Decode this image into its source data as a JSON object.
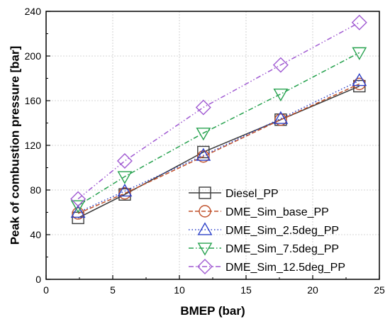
{
  "chart_data": {
    "type": "line",
    "xlabel": "BMEP (bar)",
    "ylabel": "Peak of combustion pressure [bar]",
    "xlim": [
      0,
      25
    ],
    "ylim": [
      0,
      240
    ],
    "xticks": [
      0,
      5,
      10,
      15,
      20,
      25
    ],
    "yticks": [
      0,
      40,
      80,
      120,
      160,
      200,
      240
    ],
    "grid": true,
    "legend_position": "bottom-right",
    "series": [
      {
        "name": "Diesel_PP",
        "marker": "square",
        "color": "#3a3a3a",
        "dash": "solid",
        "x": [
          2.4,
          5.9,
          11.8,
          17.6,
          23.5
        ],
        "y": [
          55,
          76,
          114,
          143,
          173
        ]
      },
      {
        "name": "DME_Sim_base_PP",
        "marker": "circle",
        "color": "#c0502a",
        "dash": "dash",
        "x": [
          2.4,
          5.9,
          11.8,
          17.6,
          23.5
        ],
        "y": [
          59,
          77,
          110,
          143,
          175
        ]
      },
      {
        "name": "DME_Sim_2.5deg_PP",
        "marker": "triangle-up",
        "color": "#2b40c8",
        "dash": "dot",
        "x": [
          2.4,
          5.9,
          11.8,
          17.6,
          23.5
        ],
        "y": [
          60,
          79,
          111,
          144,
          178
        ]
      },
      {
        "name": "DME_Sim_7.5deg_PP",
        "marker": "triangle-down",
        "color": "#27a24f",
        "dash": "dashdot",
        "x": [
          2.4,
          5.9,
          11.8,
          17.6,
          23.5
        ],
        "y": [
          66,
          92,
          131,
          166,
          203
        ]
      },
      {
        "name": "DME_Sim_12.5deg_PP",
        "marker": "diamond",
        "color": "#a05ad2",
        "dash": "dashdotdot",
        "x": [
          2.4,
          5.9,
          11.8,
          17.6,
          23.5
        ],
        "y": [
          72,
          106,
          154,
          192,
          230
        ]
      }
    ]
  }
}
